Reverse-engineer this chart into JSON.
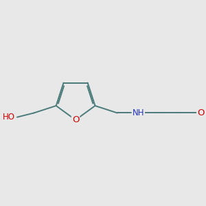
{
  "bg_color": "#e8e8e8",
  "bond_color": "#4a7a7a",
  "O_color": "#cc0000",
  "N_color": "#2233bb",
  "font_size": 8.5,
  "line_width": 1.4,
  "figsize": [
    3.0,
    3.0
  ],
  "dpi": 100,
  "xlim": [
    -1.6,
    2.6
  ],
  "ylim": [
    -0.7,
    0.9
  ]
}
